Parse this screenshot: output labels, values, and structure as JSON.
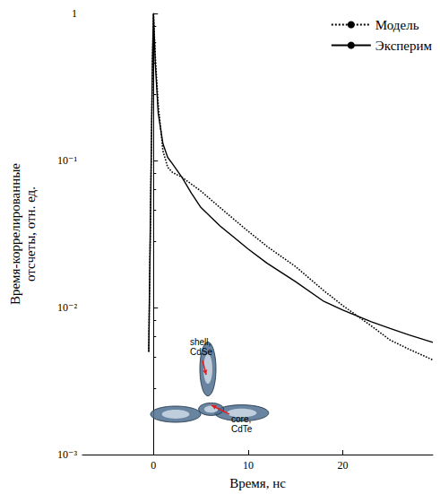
{
  "chart_data": {
    "type": "line",
    "x_label": "Время, нс",
    "y_label": "Время-коррелированные отсчеты, отн. ед.",
    "xlim": [
      -7.5,
      29.5
    ],
    "xticks": [
      0,
      10,
      20
    ],
    "ylim": [
      0.001,
      1
    ],
    "yticks": [
      {
        "value": 0.001,
        "label": "10⁻³"
      },
      {
        "value": 0.01,
        "label": "10⁻²"
      },
      {
        "value": 0.1,
        "label": "10⁻¹"
      },
      1
    ],
    "log": "y",
    "grid": false,
    "legend": "upper right",
    "series": [
      {
        "name": "Модель",
        "color": "#000000",
        "line_style": "dotted",
        "x": [
          -0.5,
          -0.3,
          -0.1,
          0,
          0.2,
          0.5,
          1,
          1.5,
          2,
          3,
          5,
          7,
          10,
          12,
          15,
          18,
          20,
          23,
          25,
          27,
          29.5
        ],
        "values": [
          0.005,
          0.05,
          0.5,
          1,
          0.5,
          0.24,
          0.116,
          0.09,
          0.083,
          0.077,
          0.062,
          0.048,
          0.033,
          0.026,
          0.019,
          0.013,
          0.0103,
          0.0075,
          0.006,
          0.0052,
          0.0044
        ]
      },
      {
        "name": "Эксперим",
        "color": "#000000",
        "line_style": "solid",
        "x": [
          -0.5,
          -0.3,
          -0.1,
          0,
          0.2,
          0.5,
          1,
          1.5,
          2,
          3,
          4,
          5,
          7,
          10,
          12,
          15,
          18,
          20,
          23,
          25,
          27,
          29.5
        ],
        "values": [
          0.005,
          0.05,
          0.5,
          1,
          0.45,
          0.21,
          0.13,
          0.105,
          0.095,
          0.077,
          0.06,
          0.048,
          0.036,
          0.025,
          0.02,
          0.015,
          0.011,
          0.0096,
          0.008,
          0.0072,
          0.0065,
          0.0058
        ]
      }
    ],
    "annotations": [
      "shell, CdSe",
      "core, CdTe"
    ]
  }
}
